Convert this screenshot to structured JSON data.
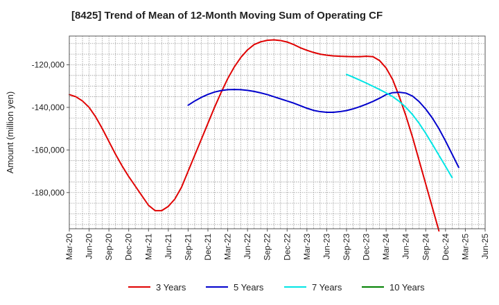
{
  "chart_data": {
    "type": "line",
    "title": "[8425]  Trend of Mean of 12-Month Moving Sum of Operating CF",
    "xlabel": "",
    "ylabel": "Amount (million yen)",
    "ylim": [
      -197000,
      -106500
    ],
    "y_ticks": [
      -180000,
      -160000,
      -140000,
      -120000
    ],
    "y_tick_labels": [
      "-180,000",
      "-160,000",
      "-140,000",
      "-120,000"
    ],
    "x_ticks": [
      "Mar-20",
      "Jun-20",
      "Sep-20",
      "Dec-20",
      "Mar-21",
      "Jun-21",
      "Sep-21",
      "Dec-21",
      "Mar-22",
      "Jun-22",
      "Sep-22",
      "Dec-22",
      "Mar-23",
      "Jun-23",
      "Sep-23",
      "Dec-23",
      "Mar-24",
      "Jun-24",
      "Sep-24",
      "Dec-24",
      "Mar-25",
      "Jun-25"
    ],
    "x_start": "Mar-20",
    "x_period_months": 1,
    "grid": true,
    "legend_position": "bottom",
    "series": [
      {
        "name": "3 Years",
        "color": "#e00000",
        "start_index": 0,
        "values": [
          -134000,
          -135000,
          -137000,
          -140000,
          -144500,
          -150000,
          -156000,
          -162000,
          -167500,
          -172500,
          -177000,
          -181500,
          -186000,
          -188500,
          -188500,
          -186500,
          -183000,
          -177500,
          -170000,
          -162500,
          -155000,
          -147500,
          -140000,
          -133000,
          -126500,
          -121000,
          -116500,
          -113000,
          -110500,
          -109200,
          -108500,
          -108300,
          -108600,
          -109300,
          -110500,
          -112000,
          -113200,
          -114200,
          -115000,
          -115500,
          -115800,
          -116000,
          -116100,
          -116200,
          -116200,
          -116000,
          -116200,
          -118000,
          -121500,
          -127000,
          -135000,
          -144000,
          -154000,
          -165000,
          -176000,
          -187000,
          -198000
        ]
      },
      {
        "name": "5 Years",
        "color": "#0000cc",
        "start_index": 18,
        "values": [
          -139000,
          -137000,
          -135300,
          -133900,
          -132800,
          -132100,
          -131700,
          -131600,
          -131700,
          -132000,
          -132500,
          -133200,
          -134000,
          -135000,
          -136000,
          -137000,
          -138000,
          -139200,
          -140400,
          -141400,
          -142000,
          -142300,
          -142300,
          -142000,
          -141500,
          -140700,
          -139700,
          -138500,
          -137200,
          -135700,
          -134000,
          -133100,
          -132900,
          -133300,
          -134700,
          -137300,
          -140800,
          -145000,
          -150000,
          -155800,
          -162000,
          -168200
        ]
      },
      {
        "name": "7 Years",
        "color": "#00e5e5",
        "start_index": 42,
        "values": [
          -124500,
          -125800,
          -127200,
          -128600,
          -130100,
          -131600,
          -133200,
          -135000,
          -137200,
          -140000,
          -143400,
          -147500,
          -152200,
          -157300,
          -162500,
          -167700,
          -173000
        ]
      },
      {
        "name": "10 Years",
        "color": "#008000",
        "start_index": 0,
        "values": []
      }
    ]
  }
}
